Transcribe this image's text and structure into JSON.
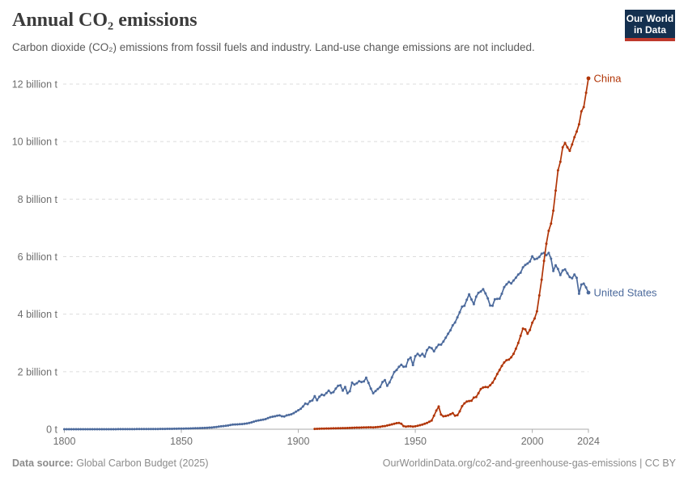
{
  "header": {
    "title": "Annual CO₂ emissions",
    "subtitle": "Carbon dioxide (CO₂) emissions from fossil fuels and industry. Land-use change emissions are not included.",
    "logo": {
      "line1": "Our World",
      "line2": "in Data",
      "bg_color": "#14304f",
      "bar_color": "#bf392c"
    }
  },
  "footer": {
    "source_label": "Data source:",
    "source": "Global Carbon Budget (2025)",
    "credit": "OurWorldinData.org/co2-and-greenhouse-gas-emissions | CC BY"
  },
  "colors": {
    "china": "#B13507",
    "united_states": "#4C6A9C",
    "grid": "#dcdcdc",
    "axis": "#ababab",
    "tick_label": "#6e6e6e"
  },
  "chart_data": {
    "type": "line",
    "title": "Annual CO₂ emissions",
    "unit": "billion t",
    "xlim": [
      1800,
      2024
    ],
    "ylim": [
      0,
      12
    ],
    "grid": "horizontal dashed",
    "legend": "series end labels",
    "x_ticks": [
      1800,
      1850,
      1900,
      1950,
      2000,
      2024
    ],
    "y_ticks": [
      {
        "value": 0,
        "label": "0 t"
      },
      {
        "value": 2,
        "label": "2 billion t"
      },
      {
        "value": 4,
        "label": "4 billion t"
      },
      {
        "value": 6,
        "label": "6 billion t"
      },
      {
        "value": 8,
        "label": "8 billion t"
      },
      {
        "value": 10,
        "label": "10 billion t"
      },
      {
        "value": 12,
        "label": "12 billion t"
      }
    ],
    "series": [
      {
        "name": "United States",
        "color": "#4C6A9C",
        "points": [
          [
            1800,
            0.0002
          ],
          [
            1805,
            0.0003
          ],
          [
            1810,
            0.0005
          ],
          [
            1815,
            0.0008
          ],
          [
            1820,
            0.001
          ],
          [
            1825,
            0.002
          ],
          [
            1830,
            0.004
          ],
          [
            1835,
            0.006
          ],
          [
            1840,
            0.009
          ],
          [
            1845,
            0.014
          ],
          [
            1850,
            0.02
          ],
          [
            1855,
            0.03
          ],
          [
            1860,
            0.045
          ],
          [
            1863,
            0.06
          ],
          [
            1866,
            0.09
          ],
          [
            1868,
            0.11
          ],
          [
            1870,
            0.13
          ],
          [
            1872,
            0.16
          ],
          [
            1874,
            0.17
          ],
          [
            1876,
            0.18
          ],
          [
            1878,
            0.2
          ],
          [
            1880,
            0.24
          ],
          [
            1882,
            0.29
          ],
          [
            1884,
            0.32
          ],
          [
            1886,
            0.35
          ],
          [
            1888,
            0.42
          ],
          [
            1890,
            0.45
          ],
          [
            1891,
            0.47
          ],
          [
            1892,
            0.48
          ],
          [
            1893,
            0.45
          ],
          [
            1894,
            0.44
          ],
          [
            1895,
            0.48
          ],
          [
            1896,
            0.5
          ],
          [
            1897,
            0.52
          ],
          [
            1898,
            0.56
          ],
          [
            1899,
            0.61
          ],
          [
            1900,
            0.66
          ],
          [
            1901,
            0.71
          ],
          [
            1902,
            0.79
          ],
          [
            1903,
            0.89
          ],
          [
            1904,
            0.87
          ],
          [
            1905,
            0.97
          ],
          [
            1906,
            1.0
          ],
          [
            1907,
            1.15
          ],
          [
            1908,
            1.01
          ],
          [
            1909,
            1.13
          ],
          [
            1910,
            1.2
          ],
          [
            1911,
            1.18
          ],
          [
            1912,
            1.26
          ],
          [
            1913,
            1.34
          ],
          [
            1914,
            1.26
          ],
          [
            1915,
            1.29
          ],
          [
            1916,
            1.41
          ],
          [
            1917,
            1.51
          ],
          [
            1918,
            1.53
          ],
          [
            1919,
            1.34
          ],
          [
            1920,
            1.47
          ],
          [
            1921,
            1.25
          ],
          [
            1922,
            1.32
          ],
          [
            1923,
            1.62
          ],
          [
            1924,
            1.55
          ],
          [
            1925,
            1.6
          ],
          [
            1926,
            1.67
          ],
          [
            1927,
            1.64
          ],
          [
            1928,
            1.66
          ],
          [
            1929,
            1.79
          ],
          [
            1930,
            1.61
          ],
          [
            1931,
            1.41
          ],
          [
            1932,
            1.25
          ],
          [
            1933,
            1.33
          ],
          [
            1934,
            1.4
          ],
          [
            1935,
            1.47
          ],
          [
            1936,
            1.64
          ],
          [
            1937,
            1.71
          ],
          [
            1938,
            1.51
          ],
          [
            1939,
            1.63
          ],
          [
            1940,
            1.8
          ],
          [
            1941,
            1.99
          ],
          [
            1942,
            2.06
          ],
          [
            1943,
            2.17
          ],
          [
            1944,
            2.24
          ],
          [
            1945,
            2.17
          ],
          [
            1946,
            2.18
          ],
          [
            1947,
            2.42
          ],
          [
            1948,
            2.49
          ],
          [
            1949,
            2.23
          ],
          [
            1950,
            2.54
          ],
          [
            1951,
            2.62
          ],
          [
            1952,
            2.55
          ],
          [
            1953,
            2.62
          ],
          [
            1954,
            2.52
          ],
          [
            1955,
            2.75
          ],
          [
            1956,
            2.85
          ],
          [
            1957,
            2.82
          ],
          [
            1958,
            2.71
          ],
          [
            1959,
            2.84
          ],
          [
            1960,
            2.94
          ],
          [
            1961,
            2.94
          ],
          [
            1962,
            3.05
          ],
          [
            1963,
            3.18
          ],
          [
            1964,
            3.32
          ],
          [
            1965,
            3.44
          ],
          [
            1966,
            3.61
          ],
          [
            1967,
            3.71
          ],
          [
            1968,
            3.89
          ],
          [
            1969,
            4.07
          ],
          [
            1970,
            4.26
          ],
          [
            1971,
            4.29
          ],
          [
            1972,
            4.5
          ],
          [
            1973,
            4.69
          ],
          [
            1974,
            4.51
          ],
          [
            1975,
            4.35
          ],
          [
            1976,
            4.61
          ],
          [
            1977,
            4.74
          ],
          [
            1978,
            4.79
          ],
          [
            1979,
            4.87
          ],
          [
            1980,
            4.72
          ],
          [
            1981,
            4.55
          ],
          [
            1982,
            4.3
          ],
          [
            1983,
            4.29
          ],
          [
            1984,
            4.52
          ],
          [
            1985,
            4.53
          ],
          [
            1986,
            4.54
          ],
          [
            1987,
            4.71
          ],
          [
            1988,
            4.94
          ],
          [
            1989,
            5.04
          ],
          [
            1990,
            5.12
          ],
          [
            1991,
            5.07
          ],
          [
            1992,
            5.17
          ],
          [
            1993,
            5.27
          ],
          [
            1994,
            5.38
          ],
          [
            1995,
            5.44
          ],
          [
            1996,
            5.63
          ],
          [
            1997,
            5.71
          ],
          [
            1998,
            5.76
          ],
          [
            1999,
            5.83
          ],
          [
            2000,
            6.01
          ],
          [
            2001,
            5.91
          ],
          [
            2002,
            5.93
          ],
          [
            2003,
            5.99
          ],
          [
            2004,
            6.1
          ],
          [
            2005,
            6.13
          ],
          [
            2006,
            6.05
          ],
          [
            2007,
            6.13
          ],
          [
            2008,
            5.93
          ],
          [
            2009,
            5.5
          ],
          [
            2010,
            5.7
          ],
          [
            2011,
            5.57
          ],
          [
            2012,
            5.36
          ],
          [
            2013,
            5.52
          ],
          [
            2014,
            5.56
          ],
          [
            2015,
            5.42
          ],
          [
            2016,
            5.29
          ],
          [
            2017,
            5.25
          ],
          [
            2018,
            5.38
          ],
          [
            2019,
            5.26
          ],
          [
            2020,
            4.71
          ],
          [
            2021,
            5.03
          ],
          [
            2022,
            5.06
          ],
          [
            2023,
            4.93
          ],
          [
            2024,
            4.75
          ]
        ]
      },
      {
        "name": "China",
        "color": "#B13507",
        "points": [
          [
            1907,
            0.012
          ],
          [
            1910,
            0.02
          ],
          [
            1915,
            0.03
          ],
          [
            1920,
            0.04
          ],
          [
            1925,
            0.055
          ],
          [
            1928,
            0.062
          ],
          [
            1930,
            0.068
          ],
          [
            1932,
            0.066
          ],
          [
            1934,
            0.075
          ],
          [
            1935,
            0.085
          ],
          [
            1936,
            0.1
          ],
          [
            1937,
            0.11
          ],
          [
            1938,
            0.13
          ],
          [
            1939,
            0.15
          ],
          [
            1940,
            0.17
          ],
          [
            1941,
            0.19
          ],
          [
            1942,
            0.21
          ],
          [
            1943,
            0.22
          ],
          [
            1944,
            0.19
          ],
          [
            1945,
            0.11
          ],
          [
            1946,
            0.09
          ],
          [
            1947,
            0.1
          ],
          [
            1948,
            0.1
          ],
          [
            1949,
            0.09
          ],
          [
            1950,
            0.1
          ],
          [
            1951,
            0.12
          ],
          [
            1952,
            0.14
          ],
          [
            1953,
            0.16
          ],
          [
            1954,
            0.19
          ],
          [
            1955,
            0.22
          ],
          [
            1956,
            0.26
          ],
          [
            1957,
            0.3
          ],
          [
            1958,
            0.47
          ],
          [
            1959,
            0.65
          ],
          [
            1960,
            0.79
          ],
          [
            1961,
            0.51
          ],
          [
            1962,
            0.45
          ],
          [
            1963,
            0.46
          ],
          [
            1964,
            0.48
          ],
          [
            1965,
            0.52
          ],
          [
            1966,
            0.56
          ],
          [
            1967,
            0.47
          ],
          [
            1968,
            0.49
          ],
          [
            1969,
            0.62
          ],
          [
            1970,
            0.8
          ],
          [
            1971,
            0.9
          ],
          [
            1972,
            0.96
          ],
          [
            1973,
            0.98
          ],
          [
            1974,
            0.99
          ],
          [
            1975,
            1.1
          ],
          [
            1976,
            1.12
          ],
          [
            1977,
            1.25
          ],
          [
            1978,
            1.4
          ],
          [
            1979,
            1.45
          ],
          [
            1980,
            1.47
          ],
          [
            1981,
            1.46
          ],
          [
            1982,
            1.53
          ],
          [
            1983,
            1.62
          ],
          [
            1984,
            1.76
          ],
          [
            1985,
            1.92
          ],
          [
            1986,
            2.06
          ],
          [
            1987,
            2.2
          ],
          [
            1988,
            2.32
          ],
          [
            1989,
            2.4
          ],
          [
            1990,
            2.42
          ],
          [
            1991,
            2.5
          ],
          [
            1992,
            2.62
          ],
          [
            1993,
            2.8
          ],
          [
            1994,
            3.0
          ],
          [
            1995,
            3.25
          ],
          [
            1996,
            3.5
          ],
          [
            1997,
            3.47
          ],
          [
            1998,
            3.32
          ],
          [
            1999,
            3.45
          ],
          [
            2000,
            3.7
          ],
          [
            2001,
            3.85
          ],
          [
            2002,
            4.1
          ],
          [
            2003,
            4.65
          ],
          [
            2004,
            5.2
          ],
          [
            2005,
            5.85
          ],
          [
            2006,
            6.45
          ],
          [
            2007,
            6.9
          ],
          [
            2008,
            7.15
          ],
          [
            2009,
            7.6
          ],
          [
            2010,
            8.3
          ],
          [
            2011,
            9.0
          ],
          [
            2012,
            9.3
          ],
          [
            2013,
            9.8
          ],
          [
            2014,
            9.95
          ],
          [
            2015,
            9.8
          ],
          [
            2016,
            9.68
          ],
          [
            2017,
            9.9
          ],
          [
            2018,
            10.15
          ],
          [
            2019,
            10.35
          ],
          [
            2020,
            10.6
          ],
          [
            2021,
            11.05
          ],
          [
            2022,
            11.2
          ],
          [
            2023,
            11.7
          ],
          [
            2024,
            12.2
          ]
        ]
      }
    ]
  }
}
